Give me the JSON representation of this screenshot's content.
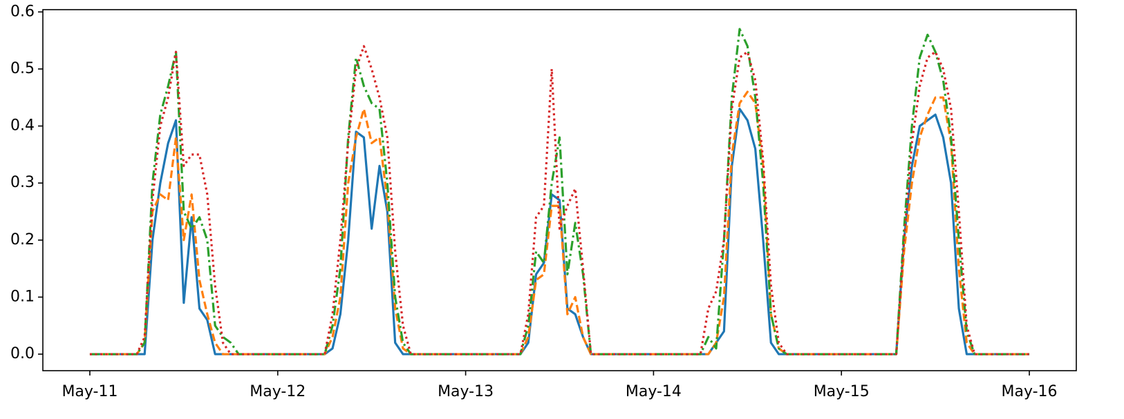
{
  "chart_data": {
    "type": "line",
    "x": [
      0,
      1,
      2,
      3,
      4,
      5,
      6,
      7,
      8,
      9,
      10,
      11,
      12,
      13,
      14,
      15,
      16,
      17,
      18,
      19,
      20,
      21,
      22,
      23,
      24,
      25,
      26,
      27,
      28,
      29,
      30,
      31,
      32,
      33,
      34,
      35,
      36,
      37,
      38,
      39,
      40,
      41,
      42,
      43,
      44,
      45,
      46,
      47,
      48,
      49,
      50,
      51,
      52,
      53,
      54,
      55,
      56,
      57,
      58,
      59,
      60,
      61,
      62,
      63,
      64,
      65,
      66,
      67,
      68,
      69,
      70,
      71,
      72,
      73,
      74,
      75,
      76,
      77,
      78,
      79,
      80,
      81,
      82,
      83,
      84,
      85,
      86,
      87,
      88,
      89,
      90,
      91,
      92,
      93,
      94,
      95,
      96,
      97,
      98,
      99,
      100,
      101,
      102,
      103,
      104,
      105,
      106,
      107,
      108,
      109,
      110,
      111,
      112,
      113,
      114,
      115,
      116,
      117,
      118,
      119,
      120
    ],
    "series": [
      {
        "color": "#1f77b4",
        "linestyle": "solid",
        "values": [
          0,
          0,
          0,
          0,
          0,
          0,
          0,
          0,
          0.2,
          0.3,
          0.37,
          0.41,
          0.09,
          0.24,
          0.08,
          0.06,
          0,
          0,
          0,
          0,
          0,
          0,
          0,
          0,
          0,
          0,
          0,
          0,
          0,
          0,
          0,
          0.01,
          0.07,
          0.2,
          0.39,
          0.38,
          0.22,
          0.33,
          0.25,
          0.02,
          0,
          0,
          0,
          0,
          0,
          0,
          0,
          0,
          0,
          0,
          0,
          0,
          0,
          0,
          0,
          0,
          0.02,
          0.14,
          0.16,
          0.28,
          0.27,
          0.08,
          0.07,
          0.03,
          0,
          0,
          0,
          0,
          0,
          0,
          0,
          0,
          0,
          0,
          0,
          0,
          0,
          0,
          0,
          0,
          0.02,
          0.04,
          0.33,
          0.43,
          0.41,
          0.36,
          0.2,
          0.02,
          0,
          0,
          0,
          0,
          0,
          0,
          0,
          0,
          0,
          0,
          0,
          0,
          0,
          0,
          0,
          0,
          0.2,
          0.33,
          0.4,
          0.41,
          0.42,
          0.38,
          0.3,
          0.08,
          0,
          0,
          0,
          0,
          0,
          0,
          0,
          0,
          0
        ]
      },
      {
        "color": "#ff7f0e",
        "linestyle": "dashed",
        "values": [
          0,
          0,
          0,
          0,
          0,
          0,
          0,
          0.02,
          0.25,
          0.28,
          0.27,
          0.38,
          0.2,
          0.28,
          0.13,
          0.07,
          0.02,
          0,
          0,
          0,
          0,
          0,
          0,
          0,
          0,
          0,
          0,
          0,
          0,
          0,
          0,
          0.03,
          0.1,
          0.3,
          0.38,
          0.43,
          0.37,
          0.38,
          0.27,
          0.08,
          0.01,
          0,
          0,
          0,
          0,
          0,
          0,
          0,
          0,
          0,
          0,
          0,
          0,
          0,
          0,
          0,
          0.03,
          0.13,
          0.14,
          0.26,
          0.26,
          0.07,
          0.1,
          0.03,
          0,
          0,
          0,
          0,
          0,
          0,
          0,
          0,
          0,
          0,
          0,
          0,
          0,
          0,
          0,
          0,
          0.02,
          0.1,
          0.35,
          0.44,
          0.46,
          0.44,
          0.33,
          0.07,
          0.01,
          0,
          0,
          0,
          0,
          0,
          0,
          0,
          0,
          0,
          0,
          0,
          0,
          0,
          0,
          0,
          0.18,
          0.3,
          0.38,
          0.42,
          0.45,
          0.45,
          0.37,
          0.15,
          0.02,
          0,
          0,
          0,
          0,
          0,
          0,
          0,
          0
        ]
      },
      {
        "color": "#2ca02c",
        "linestyle": "dashdot",
        "values": [
          0,
          0,
          0,
          0,
          0,
          0,
          0,
          0.02,
          0.3,
          0.42,
          0.47,
          0.53,
          0.25,
          0.22,
          0.24,
          0.2,
          0.05,
          0.03,
          0.02,
          0,
          0,
          0,
          0,
          0,
          0,
          0,
          0,
          0,
          0,
          0,
          0,
          0.05,
          0.15,
          0.38,
          0.52,
          0.47,
          0.44,
          0.43,
          0.3,
          0.1,
          0.02,
          0,
          0,
          0,
          0,
          0,
          0,
          0,
          0,
          0,
          0,
          0,
          0,
          0,
          0,
          0,
          0.05,
          0.18,
          0.16,
          0.3,
          0.38,
          0.14,
          0.23,
          0.14,
          0,
          0,
          0,
          0,
          0,
          0,
          0,
          0,
          0,
          0,
          0,
          0,
          0,
          0,
          0,
          0.03,
          0.01,
          0.2,
          0.45,
          0.57,
          0.54,
          0.45,
          0.3,
          0.07,
          0.01,
          0,
          0,
          0,
          0,
          0,
          0,
          0,
          0,
          0,
          0,
          0,
          0,
          0,
          0,
          0,
          0.22,
          0.4,
          0.52,
          0.56,
          0.53,
          0.48,
          0.38,
          0.2,
          0.04,
          0,
          0,
          0,
          0,
          0,
          0,
          0,
          0
        ]
      },
      {
        "color": "#d62728",
        "linestyle": "dotted",
        "values": [
          0,
          0,
          0,
          0,
          0,
          0,
          0,
          0.03,
          0.27,
          0.4,
          0.45,
          0.53,
          0.33,
          0.35,
          0.35,
          0.28,
          0.12,
          0.02,
          0,
          0,
          0,
          0,
          0,
          0,
          0,
          0,
          0,
          0,
          0,
          0,
          0,
          0.07,
          0.2,
          0.37,
          0.5,
          0.54,
          0.5,
          0.45,
          0.38,
          0.18,
          0.05,
          0,
          0,
          0,
          0,
          0,
          0,
          0,
          0,
          0,
          0,
          0,
          0,
          0,
          0,
          0,
          0.07,
          0.24,
          0.26,
          0.5,
          0.22,
          0.26,
          0.29,
          0.15,
          0,
          0,
          0,
          0,
          0,
          0,
          0,
          0,
          0,
          0,
          0,
          0,
          0,
          0,
          0,
          0.08,
          0.11,
          0.2,
          0.43,
          0.52,
          0.53,
          0.48,
          0.34,
          0.12,
          0.02,
          0,
          0,
          0,
          0,
          0,
          0,
          0,
          0,
          0,
          0,
          0,
          0,
          0,
          0,
          0,
          0.2,
          0.37,
          0.47,
          0.52,
          0.53,
          0.5,
          0.43,
          0.25,
          0.05,
          0,
          0,
          0,
          0,
          0,
          0,
          0,
          0
        ]
      }
    ],
    "xlim": [
      -6,
      126
    ],
    "xticks": [
      {
        "value": 0,
        "label": "May-11"
      },
      {
        "value": 24,
        "label": "May-12"
      },
      {
        "value": 48,
        "label": "May-13"
      },
      {
        "value": 72,
        "label": "May-14"
      },
      {
        "value": 96,
        "label": "May-15"
      },
      {
        "value": 120,
        "label": "May-16"
      }
    ],
    "ylim": [
      -0.029,
      0.604
    ],
    "yticks": [
      {
        "value": 0,
        "label": "0.0"
      },
      0.1,
      0.2,
      0.3,
      0.4,
      0.5,
      0.6
    ],
    "grid": false
  }
}
